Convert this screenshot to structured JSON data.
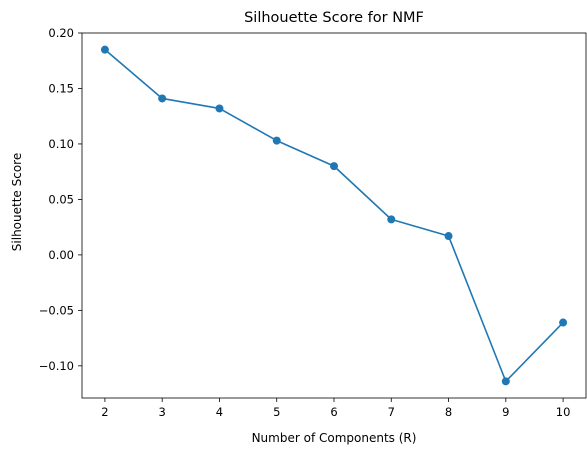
{
  "chart_data": {
    "type": "line",
    "title": "Silhouette Score for NMF",
    "xlabel": "Number of Components (R)",
    "ylabel": "Silhouette Score",
    "x": [
      2,
      3,
      4,
      5,
      6,
      7,
      8,
      9,
      10
    ],
    "series": [
      {
        "values": [
          0.185,
          0.141,
          0.132,
          0.103,
          0.08,
          0.032,
          0.017,
          -0.114,
          -0.061
        ],
        "color": "#1f77b4",
        "marker": "circle"
      }
    ],
    "xticks": [
      2,
      3,
      4,
      5,
      6,
      7,
      8,
      9,
      10
    ],
    "xtick_labels": [
      "2",
      "3",
      "4",
      "5",
      "6",
      "7",
      "8",
      "9",
      "10"
    ],
    "yticks": [
      -0.1,
      -0.05,
      0.0,
      0.05,
      0.1,
      0.15,
      0.2
    ],
    "ytick_labels": [
      "−0.10",
      "−0.05",
      "0.00",
      "0.05",
      "0.10",
      "0.15",
      "0.20"
    ],
    "xlim": [
      1.6,
      10.4
    ],
    "ylim": [
      -0.129,
      0.2
    ],
    "grid": false,
    "legend": "none"
  }
}
